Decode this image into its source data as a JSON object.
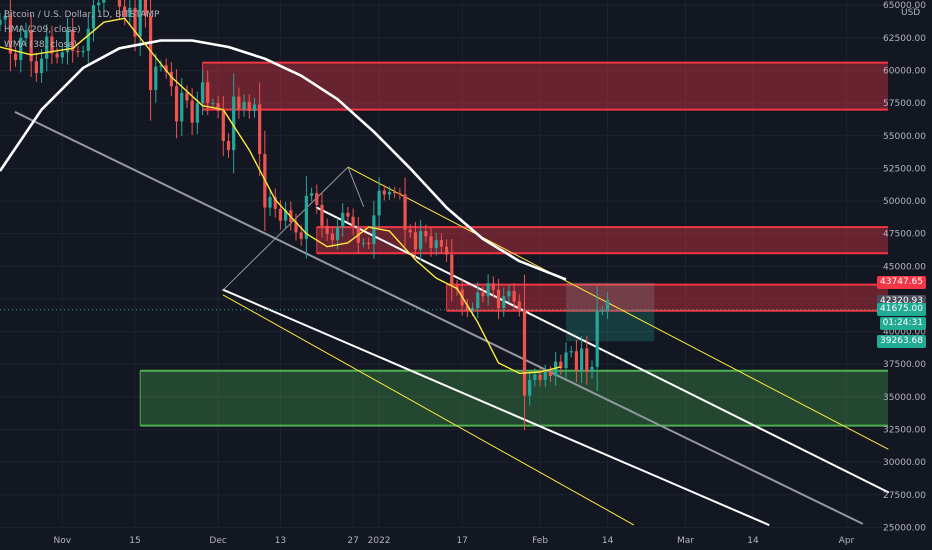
{
  "legend": {
    "title": "Bitcoin / U.S. Dollar, 1D, BITSTAMP",
    "hma": "HMA (209, close)",
    "wma": "WMA (38, close)"
  },
  "currency": "USD",
  "price_tags": [
    {
      "label": "43747.65",
      "price": 43747.65,
      "color": "#f23645"
    },
    {
      "label": "42320.93",
      "price": 42320.93,
      "color": "#4a4e5a"
    },
    {
      "label": "41675.00",
      "price": 41675.0,
      "color": "#22ab94"
    },
    {
      "label": "01:24:31",
      "price": 40650,
      "color": "#22ab94"
    },
    {
      "label": "39263.68",
      "price": 39263.68,
      "color": "#22ab94"
    }
  ],
  "colors": {
    "background": "#131722",
    "grid": "#1f2330",
    "up": "#26a69a",
    "down": "#ef5350",
    "resistance_zone": "#f23645",
    "support_zone": "#4caf50",
    "hma_line": "#ffffff",
    "wma_line": "#ffeb3b",
    "channel_gray": "#9598a1",
    "channel_white": "#ffffff",
    "channel_yellow": "#ffeb3b",
    "axis_text": "#b2b5be"
  },
  "chart_data": {
    "type": "candlestick",
    "symbol": "Bitcoin / U.S. Dollar",
    "interval": "1D",
    "exchange": "BITSTAMP",
    "y_axis_side": "right",
    "ylim": [
      24800,
      65400
    ],
    "y_ticks": [
      25000,
      27500,
      30000,
      32500,
      35000,
      37500,
      40000,
      42500,
      45000,
      47500,
      50000,
      52500,
      55000,
      57500,
      60000,
      62500,
      65000
    ],
    "y_tick_labels": [
      "25000.00",
      "27500.00",
      "30000.00",
      "32500.00",
      "35000.00",
      "37500.00",
      "40000.00",
      "42500.00",
      "45000.00",
      "47500.00",
      "50000.00",
      "52500.00",
      "55000.00",
      "57500.00",
      "60000.00",
      "62500.00",
      "65000.00"
    ],
    "x_start_date": "2021-10-20",
    "x_end_date": "2022-04-09",
    "x_ticks": [
      {
        "date": "2021-11-01",
        "label": "Nov"
      },
      {
        "date": "2021-11-15",
        "label": "15"
      },
      {
        "date": "2021-12-01",
        "label": "Dec"
      },
      {
        "date": "2021-12-13",
        "label": "13"
      },
      {
        "date": "2021-12-27",
        "label": "27"
      },
      {
        "date": "2022-01-01",
        "label": "2022"
      },
      {
        "date": "2022-01-17",
        "label": "17"
      },
      {
        "date": "2022-02-01",
        "label": "Feb"
      },
      {
        "date": "2022-02-14",
        "label": "14"
      },
      {
        "date": "2022-03-01",
        "label": "Mar"
      },
      {
        "date": "2022-03-14",
        "label": "14"
      },
      {
        "date": "2022-04-01",
        "label": "Apr"
      }
    ],
    "closes": [
      63900,
      64200,
      61300,
      60800,
      62500,
      63100,
      60700,
      59800,
      60900,
      62600,
      61300,
      61000,
      61400,
      63100,
      61500,
      61400,
      61500,
      63200,
      65000,
      65200,
      66400,
      66500,
      66800,
      64900,
      64100,
      64800,
      62600,
      65800,
      64200,
      58500,
      60300,
      60400,
      59900,
      58800,
      56100,
      58300,
      57700,
      56000,
      57500,
      59100,
      57500,
      57500,
      56900,
      54600,
      53900,
      58000,
      57000,
      57600,
      56900,
      57400,
      53600,
      49500,
      50300,
      49400,
      48500,
      49300,
      48400,
      47600,
      47100,
      50400,
      50600,
      49700,
      48100,
      47500,
      47000,
      48000,
      49100,
      48800,
      48000,
      46800,
      46800,
      46700,
      48900,
      50800,
      50500,
      50700,
      50600,
      50500,
      47800,
      47600,
      46300,
      47700,
      47300,
      46400,
      47000,
      46500,
      45900,
      43500,
      43200,
      42000,
      41600,
      41800,
      43000,
      42700,
      43700,
      43200,
      41800,
      42700,
      43100,
      42300,
      41700,
      35100,
      36300,
      36700,
      36300,
      36900,
      36600,
      37700,
      37200,
      38400,
      38500,
      37000,
      38700,
      36900,
      37300,
      41600,
      41600,
      42400
    ],
    "zones": [
      {
        "name": "resistance-zone-top",
        "from": 60600,
        "to": 57000,
        "start": "2021-11-28",
        "end": "2022-04-09",
        "color": "#f23645"
      },
      {
        "name": "resistance-zone-middle",
        "from": 48000,
        "to": 46000,
        "start": "2021-12-20",
        "end": "2022-04-09",
        "color": "#f23645"
      },
      {
        "name": "resistance-zone-lower",
        "from": 43600,
        "to": 41600,
        "start": "2022-01-14",
        "end": "2022-04-09",
        "color": "#f23645"
      },
      {
        "name": "support-zone",
        "from": 37000,
        "to": 32800,
        "start": "2021-11-16",
        "end": "2022-04-09",
        "color": "#4caf50"
      }
    ],
    "position": {
      "entry": 41675,
      "target": 43747.65,
      "stop": 39263.68,
      "start": "2022-02-06",
      "end": "2022-02-23"
    },
    "channel_lines": [
      {
        "name": "gray-channel-line",
        "color": "#9598a1",
        "width": 2,
        "points": [
          [
            "2021-10-23",
            56800
          ],
          [
            "2022-04-04",
            25300
          ]
        ]
      },
      {
        "name": "white-channel-upper",
        "color": "#ffffff",
        "width": 2,
        "points": [
          [
            "2021-12-20",
            49500
          ],
          [
            "2022-04-09",
            27700
          ]
        ]
      },
      {
        "name": "white-channel-lower",
        "color": "#ffffff",
        "width": 2,
        "points": [
          [
            "2021-12-02",
            43200
          ],
          [
            "2022-03-17",
            25200
          ]
        ]
      },
      {
        "name": "yellow-channel-upper",
        "color": "#ffeb3b",
        "width": 1,
        "points": [
          [
            "2021-12-26",
            52600
          ],
          [
            "2022-04-09",
            31000
          ]
        ]
      },
      {
        "name": "yellow-channel-lower",
        "color": "#ffeb3b",
        "width": 1,
        "points": [
          [
            "2021-12-02",
            42800
          ],
          [
            "2022-02-19",
            25200
          ]
        ]
      },
      {
        "name": "pitchfork-handle-left",
        "color": "#9598a1",
        "width": 1,
        "points": [
          [
            "2021-12-02",
            43200
          ],
          [
            "2021-12-26",
            52600
          ]
        ]
      },
      {
        "name": "pitchfork-handle-right",
        "color": "#9598a1",
        "width": 1,
        "points": [
          [
            "2021-12-26",
            52600
          ],
          [
            "2021-12-29",
            49600
          ]
        ]
      }
    ],
    "hma_209": [
      [
        "2021-10-20",
        52300
      ],
      [
        "2021-10-28",
        57000
      ],
      [
        "2021-11-05",
        60200
      ],
      [
        "2021-11-12",
        61700
      ],
      [
        "2021-11-20",
        62300
      ],
      [
        "2021-11-26",
        62300
      ],
      [
        "2021-12-03",
        61800
      ],
      [
        "2021-12-10",
        60900
      ],
      [
        "2021-12-17",
        59600
      ],
      [
        "2021-12-24",
        57800
      ],
      [
        "2021-12-31",
        55300
      ],
      [
        "2022-01-07",
        52500
      ],
      [
        "2022-01-14",
        49500
      ],
      [
        "2022-01-21",
        47100
      ],
      [
        "2022-01-28",
        45400
      ],
      [
        "2022-02-06",
        44000
      ]
    ],
    "wma_38": [
      [
        "2021-10-20",
        61800
      ],
      [
        "2021-10-26",
        61200
      ],
      [
        "2021-11-03",
        61700
      ],
      [
        "2021-11-09",
        63700
      ],
      [
        "2021-11-13",
        64000
      ],
      [
        "2021-11-17",
        62000
      ],
      [
        "2021-11-22",
        59500
      ],
      [
        "2021-11-28",
        57300
      ],
      [
        "2021-12-02",
        57000
      ],
      [
        "2021-12-07",
        53900
      ],
      [
        "2021-12-12",
        50100
      ],
      [
        "2021-12-18",
        47500
      ],
      [
        "2021-12-22",
        46500
      ],
      [
        "2021-12-26",
        46800
      ],
      [
        "2021-12-30",
        48000
      ],
      [
        "2022-01-03",
        47700
      ],
      [
        "2022-01-08",
        45500
      ],
      [
        "2022-01-12",
        44100
      ],
      [
        "2022-01-16",
        43300
      ],
      [
        "2022-01-20",
        40700
      ],
      [
        "2022-01-24",
        37600
      ],
      [
        "2022-01-28",
        36800
      ],
      [
        "2022-02-01",
        36900
      ],
      [
        "2022-02-05",
        37300
      ]
    ]
  }
}
